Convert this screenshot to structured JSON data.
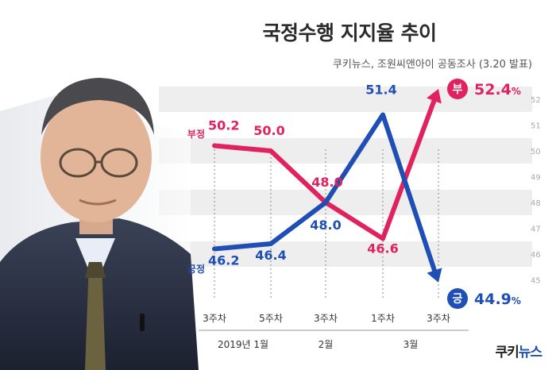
{
  "header": {
    "title": "국정수행 지지율 추이",
    "subtitle": "쿠키뉴스, 조원씨앤아이 공동조사 (3.20 발표)"
  },
  "brand": {
    "part1": "쿠키",
    "part2": "뉴스"
  },
  "colors": {
    "disapprove": "#e0225f",
    "approve": "#1f4eb4",
    "tick": "#aaaaaa",
    "band": "#eeeeee"
  },
  "chart_data": {
    "type": "line",
    "categories": [
      "3주차",
      "5주차",
      "3주차",
      "1주차",
      "3주차"
    ],
    "months": [
      "2019년 1월",
      "2월",
      "3월"
    ],
    "ylim": [
      45,
      52.4
    ],
    "yticks": [
      45,
      46,
      47,
      48,
      49,
      50,
      51,
      52
    ],
    "series": [
      {
        "name": "부정",
        "values": [
          50.2,
          50.0,
          48.0,
          46.6,
          52.4
        ],
        "end_badge": "부",
        "end_label": "52.4",
        "end_unit": "%"
      },
      {
        "name": "긍정",
        "values": [
          46.2,
          46.4,
          48.0,
          51.4,
          44.9
        ],
        "end_badge": "긍",
        "end_label": "44.9",
        "end_unit": "%"
      }
    ]
  }
}
